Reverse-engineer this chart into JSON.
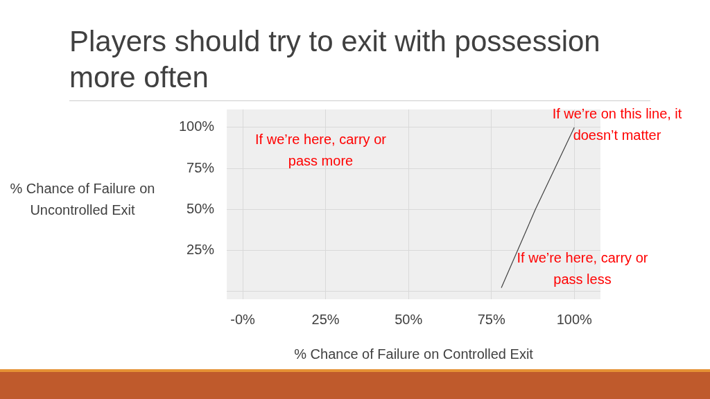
{
  "chart_data": {
    "type": "line",
    "title": "Players should try to exit with possession more often",
    "xlabel": "% Chance of Failure on Controlled Exit",
    "ylabel": "% Chance of Failure on Uncontrolled Exit",
    "x": [
      78,
      88.3,
      100
    ],
    "values": [
      2,
      50,
      100
    ],
    "color": "#404040",
    "marker": "none",
    "grid": true,
    "xlim": [
      -4.8,
      107.9
    ],
    "ylim": [
      -5,
      111
    ],
    "xticks": [
      {
        "value": 0,
        "label": "-0%"
      },
      {
        "value": 25,
        "label": "25%"
      },
      {
        "value": 50,
        "label": "50%"
      },
      {
        "value": 75,
        "label": "75%"
      },
      {
        "value": 100,
        "label": "100%"
      }
    ],
    "yticks": [
      {
        "value": 0,
        "label": null
      },
      {
        "value": 25,
        "label": "25%"
      },
      {
        "value": 50,
        "label": "50%"
      },
      {
        "value": 75,
        "label": "75%"
      },
      {
        "value": 100,
        "label": "100%"
      }
    ],
    "annotations": [
      "If we’re on this line, it doesn’t matter",
      "If we’re here, carry or pass more",
      "If we’re here, carry or pass less"
    ]
  }
}
